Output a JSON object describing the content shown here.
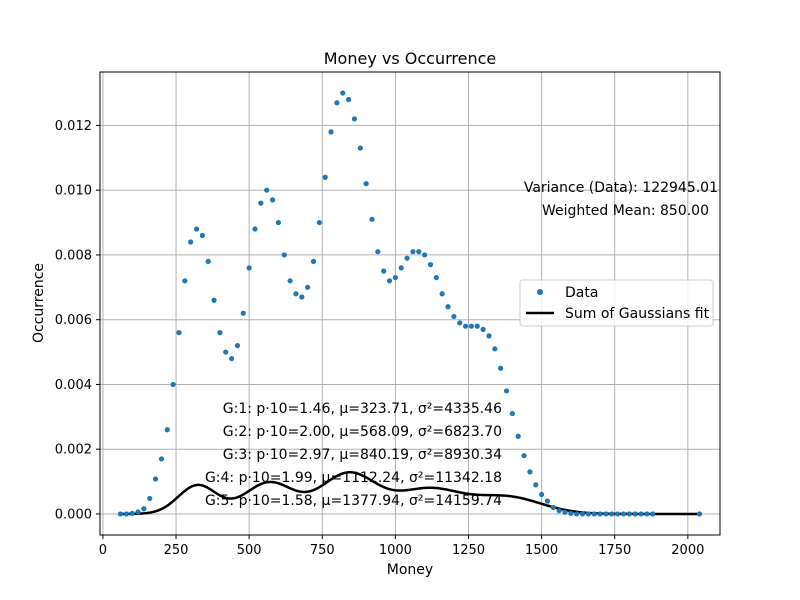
{
  "chart_data": {
    "type": "scatter",
    "title": "Money vs Occurrence",
    "xlabel": "Money",
    "ylabel": "Occurrence",
    "xlim": [
      -10,
      2110
    ],
    "ylim": [
      -0.00065,
      0.01365
    ],
    "xticks": [
      0,
      250,
      500,
      750,
      1000,
      1250,
      1500,
      1750,
      2000
    ],
    "xtick_labels": [
      "0",
      "250",
      "500",
      "750",
      "1000",
      "1250",
      "1500",
      "1750",
      "2000"
    ],
    "yticks": [
      0,
      0.002,
      0.004,
      0.006,
      0.008,
      0.01,
      0.012
    ],
    "ytick_labels": [
      "0.000",
      "0.002",
      "0.004",
      "0.006",
      "0.008",
      "0.010",
      "0.012"
    ],
    "grid": true,
    "legend_position": "center-right",
    "legend": [
      {
        "label": "Data",
        "marker": "point",
        "color": "#1f77b4"
      },
      {
        "label": "Sum of Gaussians fit",
        "marker": "line",
        "color": "#000000"
      }
    ],
    "series": [
      {
        "name": "Data",
        "style": "points",
        "color": "#1f77b4",
        "x": [
          60,
          80,
          100,
          120,
          140,
          160,
          180,
          200,
          220,
          240,
          260,
          280,
          300,
          320,
          340,
          360,
          380,
          400,
          420,
          440,
          460,
          480,
          500,
          520,
          540,
          560,
          580,
          600,
          620,
          640,
          660,
          680,
          700,
          720,
          740,
          760,
          780,
          800,
          820,
          840,
          860,
          880,
          900,
          920,
          940,
          960,
          980,
          1000,
          1020,
          1040,
          1060,
          1080,
          1100,
          1120,
          1140,
          1160,
          1180,
          1200,
          1220,
          1240,
          1260,
          1280,
          1300,
          1320,
          1340,
          1360,
          1380,
          1400,
          1420,
          1440,
          1460,
          1480,
          1500,
          1520,
          1540,
          1560,
          1580,
          1600,
          1620,
          1640,
          1660,
          1680,
          1700,
          1720,
          1740,
          1760,
          1780,
          1800,
          1820,
          1840,
          1860,
          1880,
          2040
        ],
        "y": [
          0.0,
          0.0,
          2e-05,
          6e-05,
          0.00016,
          0.00048,
          0.00108,
          0.0017,
          0.0026,
          0.004,
          0.0056,
          0.0072,
          0.0084,
          0.0088,
          0.0086,
          0.0078,
          0.0066,
          0.0056,
          0.005,
          0.0048,
          0.0052,
          0.0062,
          0.0076,
          0.0088,
          0.0096,
          0.01,
          0.0097,
          0.009,
          0.008,
          0.0072,
          0.0068,
          0.0067,
          0.007,
          0.0078,
          0.009,
          0.0104,
          0.0118,
          0.0127,
          0.013,
          0.0128,
          0.0122,
          0.0113,
          0.0102,
          0.0091,
          0.0081,
          0.0075,
          0.0072,
          0.0073,
          0.0076,
          0.0079,
          0.0081,
          0.0081,
          0.008,
          0.0077,
          0.0073,
          0.0068,
          0.0064,
          0.0061,
          0.0059,
          0.0058,
          0.0058,
          0.0058,
          0.0057,
          0.0055,
          0.0051,
          0.0045,
          0.0038,
          0.0031,
          0.0024,
          0.0018,
          0.0013,
          0.0009,
          0.0006,
          0.0004,
          0.0002,
          0.0001,
          5e-05,
          2e-05,
          0.0,
          0.0,
          0.0,
          0.0,
          0.0,
          0.0,
          0.0,
          0.0,
          0.0,
          0.0,
          0.0,
          0.0,
          0.0,
          0.0,
          0.0
        ]
      },
      {
        "name": "Sum of Gaussians fit",
        "style": "line",
        "color": "#000000",
        "components": [
          {
            "p10": 1.46,
            "mu": 323.71,
            "var": 4335.46
          },
          {
            "p10": 2.0,
            "mu": 568.09,
            "var": 6823.7
          },
          {
            "p10": 2.97,
            "mu": 840.19,
            "var": 8930.34
          },
          {
            "p10": 1.99,
            "mu": 1112.24,
            "var": 11342.18
          },
          {
            "p10": 1.58,
            "mu": 1377.94,
            "var": 14159.74
          }
        ],
        "x_range": [
          60,
          2040
        ]
      }
    ],
    "annotations": {
      "variance": "Variance (Data): 122945.01",
      "weighted_mean": "Weighted Mean: 850.00",
      "gaussians": [
        "G:1: p·10=1.46, μ=323.71, σ²=4335.46",
        "G:2: p·10=2.00, μ=568.09, σ²=6823.70",
        "G:3: p·10=2.97, μ=840.19, σ²=8930.34",
        "G:4: p·10=1.99, μ=1112.24, σ²=11342.18",
        "G:5: p·10=1.58, μ=1377.94, σ²=14159.74"
      ]
    }
  }
}
